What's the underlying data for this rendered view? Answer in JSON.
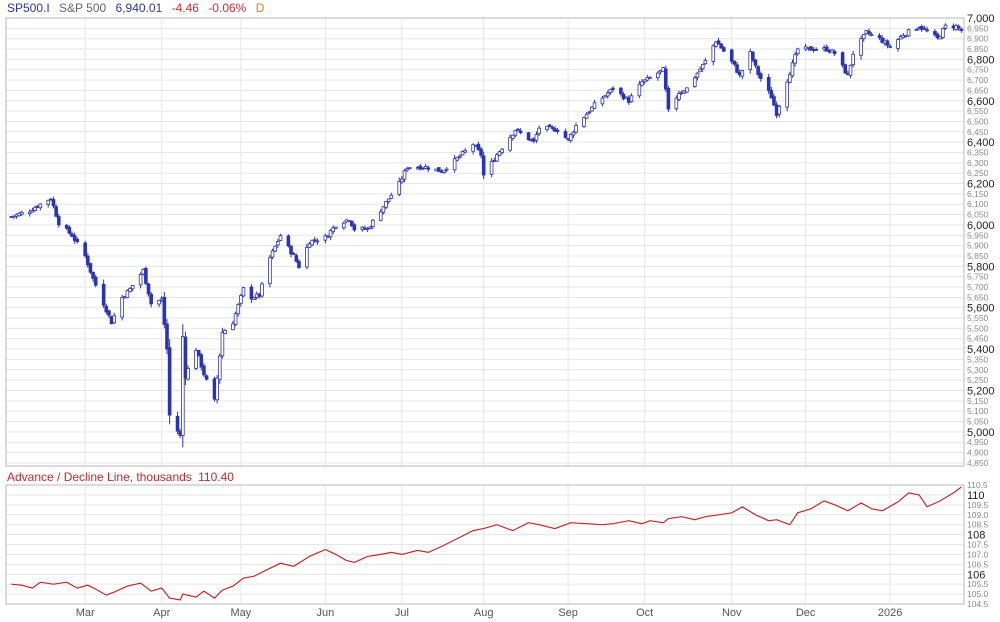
{
  "header": {
    "symbol": "SP500.I",
    "name": "S&P 500",
    "last": "6,940.01",
    "change": "-4.46",
    "change_pct": "-0.06%",
    "period": "D"
  },
  "subchart": {
    "title": "Advance / Decline Line, thousands",
    "last": "110.40"
  },
  "colors": {
    "candle": "#2b34b0",
    "ad_line": "#c62828",
    "grid": "#e6e6e6",
    "axis_text": "#8a8a8a",
    "major_text": "#222222",
    "header_blue": "#2b34b0",
    "header_red": "#d32f2f",
    "header_orange": "#e67e22",
    "header_gray": "#666666"
  },
  "chart_data": [
    {
      "type": "candlestick",
      "title": "S&P 500",
      "ylim": [
        4835,
        7000
      ],
      "xlim": [
        "2025-02-01",
        "2026-01-30"
      ],
      "x_ticks": [
        {
          "label": "Mar",
          "date": "2025-03-03"
        },
        {
          "label": "Apr",
          "date": "2025-04-01"
        },
        {
          "label": "May",
          "date": "2025-05-01"
        },
        {
          "label": "Jun",
          "date": "2025-06-02"
        },
        {
          "label": "Jul",
          "date": "2025-07-01"
        },
        {
          "label": "Aug",
          "date": "2025-08-01"
        },
        {
          "label": "Sep",
          "date": "2025-09-02"
        },
        {
          "label": "Oct",
          "date": "2025-10-01"
        },
        {
          "label": "Nov",
          "date": "2025-11-03"
        },
        {
          "label": "Dec",
          "date": "2025-12-01"
        },
        {
          "label": "2026",
          "date": "2026-01-02"
        }
      ],
      "y_ticks_major": [
        {
          "label": "7,000",
          "value": 7000
        },
        {
          "label": "6,800",
          "value": 6800
        },
        {
          "label": "6,600",
          "value": 6600
        },
        {
          "label": "6,400",
          "value": 6400
        },
        {
          "label": "6,200",
          "value": 6200
        },
        {
          "label": "6,000",
          "value": 6000
        },
        {
          "label": "5,800",
          "value": 5800
        },
        {
          "label": "5,600",
          "value": 5600
        },
        {
          "label": "5,400",
          "value": 5400
        },
        {
          "label": "5,200",
          "value": 5200
        },
        {
          "label": "5,000",
          "value": 5000
        }
      ],
      "y_ticks_minor": [
        {
          "label": "6,950",
          "value": 6950
        },
        {
          "label": "6,900",
          "value": 6900
        },
        {
          "label": "6,850",
          "value": 6850
        },
        {
          "label": "6,750",
          "value": 6750
        },
        {
          "label": "6,700",
          "value": 6700
        },
        {
          "label": "6,650",
          "value": 6650
        },
        {
          "label": "6,550",
          "value": 6550
        },
        {
          "label": "6,500",
          "value": 6500
        },
        {
          "label": "6,450",
          "value": 6450
        },
        {
          "label": "6,350",
          "value": 6350
        },
        {
          "label": "6,300",
          "value": 6300
        },
        {
          "label": "6,250",
          "value": 6250
        },
        {
          "label": "6,150",
          "value": 6150
        },
        {
          "label": "6,100",
          "value": 6100
        },
        {
          "label": "6,050",
          "value": 6050
        },
        {
          "label": "5,950",
          "value": 5950
        },
        {
          "label": "5,900",
          "value": 5900
        },
        {
          "label": "5,850",
          "value": 5850
        },
        {
          "label": "5,750",
          "value": 5750
        },
        {
          "label": "5,700",
          "value": 5700
        },
        {
          "label": "5,650",
          "value": 5650
        },
        {
          "label": "5,550",
          "value": 5550
        },
        {
          "label": "5,500",
          "value": 5500
        },
        {
          "label": "5,450",
          "value": 5450
        },
        {
          "label": "5,350",
          "value": 5350
        },
        {
          "label": "5,300",
          "value": 5300
        },
        {
          "label": "5,250",
          "value": 5250
        },
        {
          "label": "5,150",
          "value": 5150
        },
        {
          "label": "5,100",
          "value": 5100
        },
        {
          "label": "5,050",
          "value": 5050
        },
        {
          "label": "4,950",
          "value": 4950
        },
        {
          "label": "4,900",
          "value": 4900
        },
        {
          "label": "4,850",
          "value": 4850
        }
      ],
      "close_path": [
        [
          "2025-02-03",
          6040
        ],
        [
          "2025-02-10",
          6070
        ],
        [
          "2025-02-18",
          6130
        ],
        [
          "2025-02-21",
          6010
        ],
        [
          "2025-02-26",
          5950
        ],
        [
          "2025-03-03",
          5850
        ],
        [
          "2025-03-06",
          5740
        ],
        [
          "2025-03-10",
          5620
        ],
        [
          "2025-03-13",
          5530
        ],
        [
          "2025-03-17",
          5650
        ],
        [
          "2025-03-20",
          5690
        ],
        [
          "2025-03-25",
          5780
        ],
        [
          "2025-03-28",
          5620
        ],
        [
          "2025-04-01",
          5640
        ],
        [
          "2025-04-03",
          5400
        ],
        [
          "2025-04-04",
          5080
        ],
        [
          "2025-04-08",
          4980
        ],
        [
          "2025-04-09",
          5460
        ],
        [
          "2025-04-10",
          5270
        ],
        [
          "2025-04-14",
          5400
        ],
        [
          "2025-04-17",
          5280
        ],
        [
          "2025-04-21",
          5150
        ],
        [
          "2025-04-24",
          5480
        ],
        [
          "2025-04-28",
          5530
        ],
        [
          "2025-05-02",
          5690
        ],
        [
          "2025-05-05",
          5650
        ],
        [
          "2025-05-08",
          5660
        ],
        [
          "2025-05-12",
          5840
        ],
        [
          "2025-05-16",
          5950
        ],
        [
          "2025-05-21",
          5850
        ],
        [
          "2025-05-23",
          5800
        ],
        [
          "2025-05-27",
          5920
        ],
        [
          "2025-06-02",
          5940
        ],
        [
          "2025-06-06",
          6000
        ],
        [
          "2025-06-11",
          6030
        ],
        [
          "2025-06-13",
          5980
        ],
        [
          "2025-06-18",
          5980
        ],
        [
          "2025-06-24",
          6090
        ],
        [
          "2025-06-30",
          6200
        ],
        [
          "2025-07-03",
          6280
        ],
        [
          "2025-07-10",
          6280
        ],
        [
          "2025-07-16",
          6260
        ],
        [
          "2025-07-21",
          6310
        ],
        [
          "2025-07-28",
          6390
        ],
        [
          "2025-07-31",
          6340
        ],
        [
          "2025-08-01",
          6240
        ],
        [
          "2025-08-06",
          6340
        ],
        [
          "2025-08-13",
          6460
        ],
        [
          "2025-08-20",
          6400
        ],
        [
          "2025-08-22",
          6470
        ],
        [
          "2025-08-29",
          6460
        ],
        [
          "2025-09-02",
          6410
        ],
        [
          "2025-09-05",
          6480
        ],
        [
          "2025-09-12",
          6580
        ],
        [
          "2025-09-19",
          6660
        ],
        [
          "2025-09-25",
          6600
        ],
        [
          "2025-09-30",
          6690
        ],
        [
          "2025-10-03",
          6710
        ],
        [
          "2025-10-08",
          6750
        ],
        [
          "2025-10-10",
          6550
        ],
        [
          "2025-10-14",
          6640
        ],
        [
          "2025-10-17",
          6660
        ],
        [
          "2025-10-24",
          6790
        ],
        [
          "2025-10-28",
          6890
        ],
        [
          "2025-10-31",
          6840
        ],
        [
          "2025-11-04",
          6770
        ],
        [
          "2025-11-06",
          6720
        ],
        [
          "2025-11-10",
          6830
        ],
        [
          "2025-11-13",
          6730
        ],
        [
          "2025-11-18",
          6620
        ],
        [
          "2025-11-20",
          6540
        ],
        [
          "2025-11-24",
          6700
        ],
        [
          "2025-11-28",
          6850
        ],
        [
          "2025-12-03",
          6850
        ],
        [
          "2025-12-09",
          6850
        ],
        [
          "2025-12-12",
          6830
        ],
        [
          "2025-12-17",
          6720
        ],
        [
          "2025-12-19",
          6830
        ],
        [
          "2025-12-24",
          6930
        ],
        [
          "2025-12-29",
          6900
        ],
        [
          "2026-01-02",
          6860
        ],
        [
          "2026-01-07",
          6920
        ],
        [
          "2026-01-13",
          6960
        ],
        [
          "2026-01-20",
          6900
        ],
        [
          "2026-01-23",
          6960
        ],
        [
          "2026-01-27",
          6960
        ],
        [
          "2026-01-29",
          6940.01
        ]
      ]
    },
    {
      "type": "line",
      "title": "Advance / Decline Line, thousands",
      "ylim": [
        104.5,
        110.5
      ],
      "y_ticks_major": [
        {
          "label": "110",
          "value": 110
        },
        {
          "label": "108",
          "value": 108
        },
        {
          "label": "106",
          "value": 106
        }
      ],
      "y_ticks_minor": [
        {
          "label": "110.5",
          "value": 110.5
        },
        {
          "label": "109.5",
          "value": 109.5
        },
        {
          "label": "109.0",
          "value": 109.0
        },
        {
          "label": "108.5",
          "value": 108.5
        },
        {
          "label": "107.5",
          "value": 107.5
        },
        {
          "label": "107.0",
          "value": 107.0
        },
        {
          "label": "106.5",
          "value": 106.5
        },
        {
          "label": "105.5",
          "value": 105.5
        },
        {
          "label": "105.0",
          "value": 105.0
        },
        {
          "label": "104.5",
          "value": 104.5
        }
      ],
      "points": [
        [
          "2025-02-03",
          105.5
        ],
        [
          "2025-02-07",
          105.45
        ],
        [
          "2025-02-11",
          105.3
        ],
        [
          "2025-02-14",
          105.6
        ],
        [
          "2025-02-19",
          105.5
        ],
        [
          "2025-02-24",
          105.6
        ],
        [
          "2025-02-28",
          105.3
        ],
        [
          "2025-03-04",
          105.45
        ],
        [
          "2025-03-07",
          105.25
        ],
        [
          "2025-03-11",
          104.95
        ],
        [
          "2025-03-14",
          105.1
        ],
        [
          "2025-03-19",
          105.4
        ],
        [
          "2025-03-24",
          105.55
        ],
        [
          "2025-03-28",
          105.15
        ],
        [
          "2025-04-01",
          105.3
        ],
        [
          "2025-04-04",
          104.8
        ],
        [
          "2025-04-08",
          104.7
        ],
        [
          "2025-04-09",
          105.0
        ],
        [
          "2025-04-14",
          104.85
        ],
        [
          "2025-04-17",
          105.15
        ],
        [
          "2025-04-21",
          104.8
        ],
        [
          "2025-04-24",
          105.2
        ],
        [
          "2025-04-28",
          105.4
        ],
        [
          "2025-05-02",
          105.8
        ],
        [
          "2025-05-06",
          105.9
        ],
        [
          "2025-05-12",
          106.3
        ],
        [
          "2025-05-16",
          106.55
        ],
        [
          "2025-05-21",
          106.4
        ],
        [
          "2025-05-27",
          106.9
        ],
        [
          "2025-06-02",
          107.25
        ],
        [
          "2025-06-06",
          107.0
        ],
        [
          "2025-06-10",
          106.7
        ],
        [
          "2025-06-13",
          106.6
        ],
        [
          "2025-06-18",
          106.9
        ],
        [
          "2025-06-23",
          107.0
        ],
        [
          "2025-06-27",
          107.1
        ],
        [
          "2025-07-01",
          107.0
        ],
        [
          "2025-07-07",
          107.2
        ],
        [
          "2025-07-11",
          107.1
        ],
        [
          "2025-07-16",
          107.4
        ],
        [
          "2025-07-22",
          107.8
        ],
        [
          "2025-07-28",
          108.2
        ],
        [
          "2025-08-01",
          108.3
        ],
        [
          "2025-08-06",
          108.5
        ],
        [
          "2025-08-12",
          108.2
        ],
        [
          "2025-08-18",
          108.6
        ],
        [
          "2025-08-22",
          108.5
        ],
        [
          "2025-08-28",
          108.3
        ],
        [
          "2025-09-03",
          108.6
        ],
        [
          "2025-09-09",
          108.55
        ],
        [
          "2025-09-15",
          108.5
        ],
        [
          "2025-09-19",
          108.55
        ],
        [
          "2025-09-25",
          108.7
        ],
        [
          "2025-09-30",
          108.55
        ],
        [
          "2025-10-03",
          108.7
        ],
        [
          "2025-10-08",
          108.6
        ],
        [
          "2025-10-10",
          108.8
        ],
        [
          "2025-10-15",
          108.9
        ],
        [
          "2025-10-20",
          108.75
        ],
        [
          "2025-10-24",
          108.9
        ],
        [
          "2025-10-29",
          109.0
        ],
        [
          "2025-11-03",
          109.1
        ],
        [
          "2025-11-07",
          109.4
        ],
        [
          "2025-11-12",
          109.0
        ],
        [
          "2025-11-17",
          108.7
        ],
        [
          "2025-11-20",
          108.75
        ],
        [
          "2025-11-25",
          108.5
        ],
        [
          "2025-11-28",
          109.1
        ],
        [
          "2025-12-03",
          109.3
        ],
        [
          "2025-12-08",
          109.7
        ],
        [
          "2025-12-12",
          109.5
        ],
        [
          "2025-12-17",
          109.2
        ],
        [
          "2025-12-22",
          109.6
        ],
        [
          "2025-12-26",
          109.3
        ],
        [
          "2025-12-30",
          109.2
        ],
        [
          "2026-01-05",
          109.65
        ],
        [
          "2026-01-09",
          110.1
        ],
        [
          "2026-01-13",
          110.0
        ],
        [
          "2026-01-16",
          109.4
        ],
        [
          "2026-01-21",
          109.7
        ],
        [
          "2026-01-26",
          110.1
        ],
        [
          "2026-01-29",
          110.4
        ]
      ]
    }
  ]
}
